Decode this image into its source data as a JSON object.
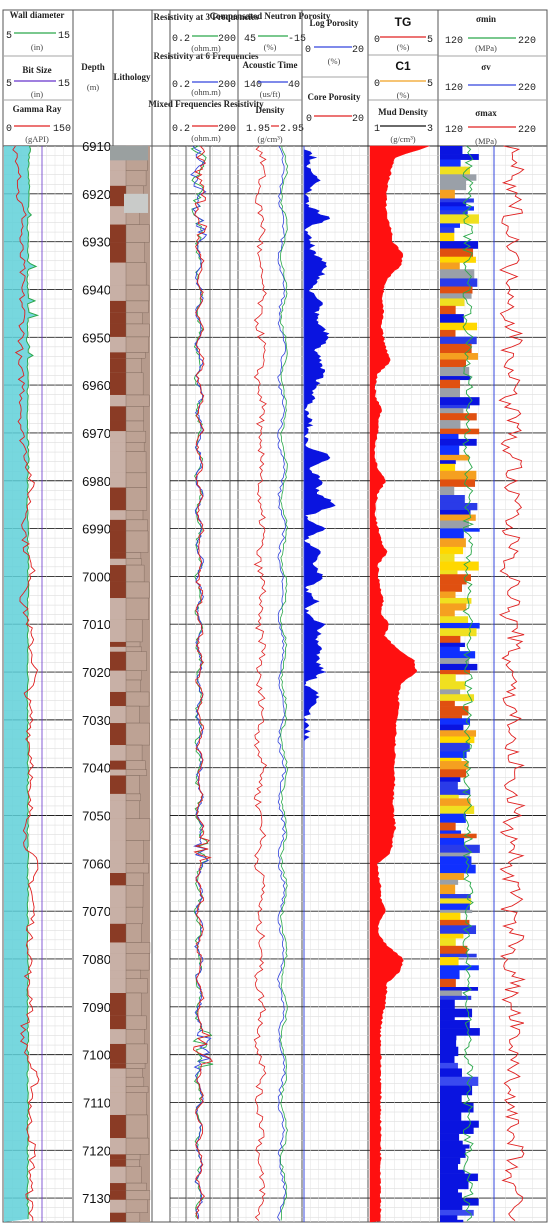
{
  "chart_data": {
    "type": "line",
    "title": "",
    "y_axis": {
      "label": "Depth",
      "unit": "(m)",
      "range": [
        6910,
        7135
      ],
      "ticks": [
        6910,
        6920,
        6930,
        6940,
        6950,
        6960,
        6970,
        6980,
        6990,
        7000,
        7010,
        7020,
        7030,
        7040,
        7050,
        7060,
        7070,
        7080,
        7090,
        7100,
        7110,
        7120,
        7130
      ]
    },
    "track1": {
      "headers": [
        {
          "label": "Wall diameter",
          "min": "5",
          "max": "15",
          "unit": "(in)",
          "color": "#2aa84a"
        },
        {
          "label": "Bit Size",
          "min": "5",
          "max": "15",
          "unit": "(in)",
          "color": "#6633cc"
        },
        {
          "label": "Gamma Ray",
          "min": "0",
          "max": "150",
          "unit": "(gAPI)",
          "color": "#e02020"
        }
      ],
      "series": [
        {
          "name": "Wall diameter",
          "x": [
            8.8,
            8.6,
            8.7,
            8.4,
            8.6,
            8.5,
            8.5,
            8.6,
            8.4,
            8.5,
            8.5,
            8.5,
            8.5,
            8.6,
            8.5,
            8.4,
            8.5,
            8.5,
            8.6,
            8.5,
            8.5,
            8.5,
            8.5,
            8.5,
            8.5,
            8.5,
            8.5,
            8.5,
            8.5,
            8.5,
            8.5,
            8.5,
            8.5,
            8.5,
            8.5,
            8.5,
            8.5,
            8.5,
            8.5,
            8.5,
            8.5,
            8.5,
            8.5,
            8.5,
            8.5,
            8.5
          ],
          "y": [
            6910,
            6915,
            6920,
            6925,
            6930,
            6935,
            6940,
            6945,
            6950,
            6955,
            6960,
            6965,
            6970,
            6975,
            6980,
            6985,
            6990,
            6995,
            7000,
            7005,
            7010,
            7015,
            7020,
            7025,
            7030,
            7035,
            7040,
            7045,
            7050,
            7055,
            7060,
            7065,
            7070,
            7075,
            7080,
            7085,
            7090,
            7095,
            7100,
            7105,
            7110,
            7115,
            7120,
            7125,
            7130,
            7135
          ]
        },
        {
          "name": "Gamma Ray",
          "x": [
            20,
            40,
            30,
            45,
            35,
            40,
            38,
            42,
            40,
            30,
            42,
            40,
            38,
            50,
            60,
            55,
            45,
            50,
            65,
            40,
            55,
            60,
            70,
            50,
            60,
            55,
            65,
            50,
            60,
            45,
            70,
            60,
            65,
            55,
            60,
            50,
            65,
            40,
            50,
            70,
            60,
            55,
            65,
            60,
            55,
            65
          ],
          "y": [
            6910,
            6915,
            6920,
            6925,
            6930,
            6935,
            6940,
            6945,
            6950,
            6955,
            6960,
            6965,
            6970,
            6975,
            6980,
            6985,
            6990,
            6995,
            7000,
            7005,
            7010,
            7015,
            7020,
            7025,
            7030,
            7035,
            7040,
            7045,
            7050,
            7055,
            7060,
            7065,
            7070,
            7075,
            7080,
            7085,
            7090,
            7095,
            7100,
            7105,
            7110,
            7115,
            7120,
            7125,
            7130,
            7135
          ]
        }
      ]
    },
    "depth_track": {
      "label": "Depth",
      "unit": "(m)"
    },
    "lithology_track": {
      "label": "Lithology"
    },
    "resistivity_track": {
      "headers": [
        {
          "label": "Resistivity at 3 Frequencies",
          "min": "0.2",
          "max": "200",
          "unit": "(ohm.m)",
          "color": "#2aa84a"
        },
        {
          "label": "Resistivity at 6 Frequencies",
          "min": "0.2",
          "max": "200",
          "unit": "(ohm.m)",
          "color": "#3344dd"
        },
        {
          "label": "Mixed Frequencies Resistivity",
          "min": "0.2",
          "max": "200",
          "unit": "(ohm.m)",
          "color": "#e02020"
        }
      ],
      "scale": "log"
    },
    "porosity_track": {
      "headers": [
        {
          "label": "Compensated Neutron Porosity",
          "min": "45",
          "max": "-15",
          "unit": "(%)",
          "color": "#2aa84a"
        },
        {
          "label": "Acoustic Time",
          "min": "140",
          "max": "40",
          "unit": "(us/ft)",
          "color": "#3344dd"
        },
        {
          "label": "Density",
          "min": "1.95",
          "max": "2.95",
          "unit": "(g/cm³)",
          "color": "#e02020"
        }
      ]
    },
    "log_porosity_track": {
      "headers": [
        {
          "label": "Log Porosity",
          "min": "0",
          "max": "20",
          "unit": "(%)",
          "color": "#3344dd"
        },
        {
          "label": "Core Porosity",
          "min": "0",
          "max": "20",
          "unit": "",
          "color": "#e02020"
        }
      ],
      "series": [
        {
          "name": "Log Porosity",
          "x": [
            0,
            3,
            1,
            5,
            0,
            1,
            8,
            0,
            2,
            3,
            7,
            5,
            2,
            6,
            4,
            5,
            8,
            4,
            5,
            6,
            4,
            3,
            0,
            2,
            1,
            0,
            9,
            2,
            5,
            4,
            10,
            0,
            6,
            0,
            5,
            3,
            6,
            0,
            4,
            0,
            6,
            4,
            5,
            4,
            6,
            0,
            5,
            3,
            0,
            1,
            0,
            0,
            0,
            0,
            0,
            0,
            0,
            0,
            0,
            0,
            0,
            0,
            0,
            0,
            0,
            0,
            0,
            0,
            0,
            0,
            0,
            0,
            0,
            0,
            0,
            0,
            0,
            0,
            0,
            0,
            0,
            0,
            0,
            0,
            0,
            0,
            0,
            0,
            0,
            0
          ],
          "y": [
            6910,
            6912.5,
            6915,
            6917.5,
            6920,
            6922.5,
            6925,
            6927.5,
            6930,
            6932.5,
            6935,
            6937.5,
            6940,
            6942.5,
            6945,
            6947.5,
            6950,
            6952.5,
            6955,
            6957.5,
            6960,
            6962.5,
            6965,
            6967.5,
            6970,
            6972.5,
            6975,
            6977.5,
            6980,
            6982.5,
            6985,
            6987.5,
            6990,
            6992.5,
            6995,
            6997.5,
            7000,
            7002.5,
            7005,
            7007.5,
            7010,
            7012.5,
            7015,
            7017.5,
            7020,
            7022.5,
            7025,
            7027.5,
            7030,
            7032.5,
            7035,
            7037.5,
            7040,
            7042.5,
            7045,
            7047.5,
            7050,
            7052.5,
            7055,
            7057.5,
            7060,
            7062.5,
            7065,
            7067.5,
            7070,
            7072.5,
            7075,
            7077.5,
            7080,
            7082.5,
            7085,
            7087.5,
            7090,
            7092.5,
            7095,
            7097.5,
            7100,
            7102.5,
            7105,
            7107.5,
            7110,
            7112.5,
            7115,
            7117.5,
            7120,
            7122.5,
            7125,
            7127.5,
            7130,
            7132.5
          ]
        }
      ]
    },
    "gas_track": {
      "headers": [
        {
          "label": "TG",
          "min": "0",
          "max": "5",
          "unit": "(%)",
          "color": "#e02020"
        },
        {
          "label": "C1",
          "min": "0",
          "max": "5",
          "unit": "(%)",
          "color": "#f0a020"
        },
        {
          "label": "Mud Density",
          "min": "1",
          "max": "3",
          "unit": "(g/cm³)",
          "color": "#111111"
        }
      ],
      "series": [
        {
          "name": "TG",
          "x": [
            4.5,
            1.8,
            1.6,
            1.4,
            1.2,
            1.2,
            1.3,
            1.6,
            1.7,
            2.5,
            2.3,
            1.4,
            1.0,
            0.9,
            1.0,
            0.8,
            1.0,
            1.2,
            1.6,
            0.6,
            0.4,
            0.4,
            0.9,
            0.6,
            0.6,
            0.4,
            0.3,
            0.6,
            1.2,
            0.6,
            0.4,
            0.4,
            0.6,
            0.8,
            1.3,
            0.6,
            0.6,
            0.8,
            1.0,
            0.8,
            1.4,
            1.1,
            2.0,
            3.3,
            3.5,
            2.3,
            2.1,
            2.2,
            2.0,
            2.0,
            1.9,
            1.9,
            1.8,
            1.9,
            1.8,
            1.7,
            1.8,
            1.9,
            1.7,
            1.6,
            0.6,
            0.6,
            0.8,
            0.8,
            1.2,
            0.6,
            0.6,
            1.4,
            2.5,
            2.3,
            1.3,
            1.2,
            1.1,
            0.9,
            0.8,
            0.8,
            0.8,
            0.8,
            0.8,
            0.8,
            0.8,
            0.8,
            0.8,
            0.8,
            0.8,
            0.8,
            0.8,
            0.8,
            0.8,
            0.8
          ],
          "y": [
            6910,
            6912.5,
            6915,
            6917.5,
            6920,
            6922.5,
            6925,
            6927.5,
            6930,
            6932.5,
            6935,
            6937.5,
            6940,
            6942.5,
            6945,
            6947.5,
            6950,
            6952.5,
            6955,
            6957.5,
            6960,
            6962.5,
            6965,
            6967.5,
            6970,
            6972.5,
            6975,
            6977.5,
            6980,
            6982.5,
            6985,
            6987.5,
            6990,
            6992.5,
            6995,
            6997.5,
            7000,
            7002.5,
            7005,
            7007.5,
            7010,
            7012.5,
            7015,
            7017.5,
            7020,
            7022.5,
            7025,
            7027.5,
            7030,
            7032.5,
            7035,
            7037.5,
            7040,
            7042.5,
            7045,
            7047.5,
            7050,
            7052.5,
            7055,
            7057.5,
            7060,
            7062.5,
            7065,
            7067.5,
            7070,
            7072.5,
            7075,
            7077.5,
            7080,
            7082.5,
            7085,
            7087.5,
            7090,
            7092.5,
            7095,
            7097.5,
            7100,
            7102.5,
            7105,
            7107.5,
            7110,
            7112.5,
            7115,
            7117.5,
            7120,
            7122.5,
            7125,
            7127.5,
            7130,
            7132.5
          ]
        }
      ]
    },
    "stress_track": {
      "headers": [
        {
          "label": "σmin",
          "min": "120",
          "max": "220",
          "unit": "(MPa)",
          "color": "#2aa84a"
        },
        {
          "label": "σv",
          "min": "120",
          "max": "220",
          "unit": "",
          "color": "#3344dd"
        },
        {
          "label": "σmax",
          "min": "120",
          "max": "220",
          "unit": "(MPa)",
          "color": "#e02020"
        }
      ]
    }
  }
}
